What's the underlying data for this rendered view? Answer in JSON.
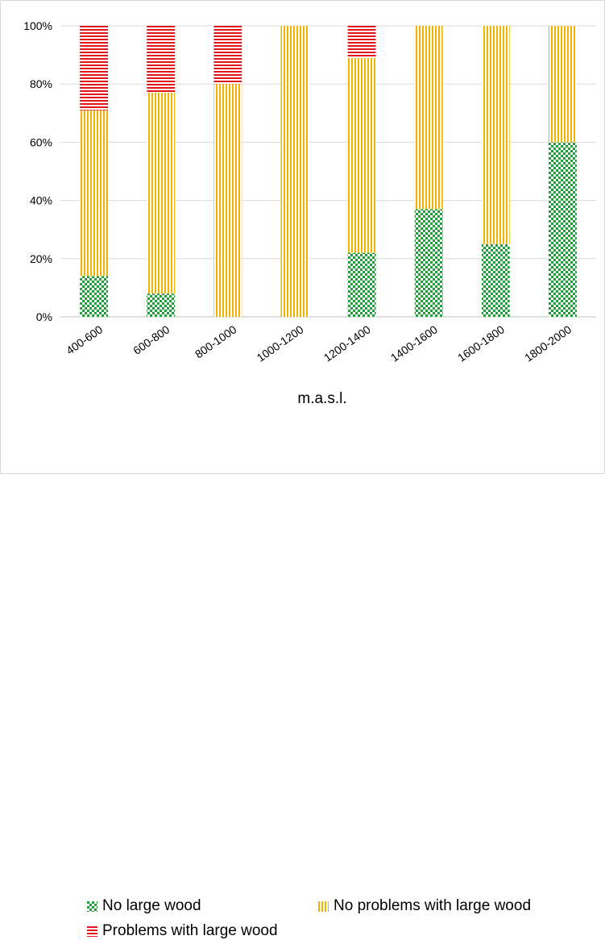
{
  "chart_data": {
    "type": "bar",
    "stacked": true,
    "normalized": true,
    "categories": [
      "400-600",
      "600-800",
      "800-1000",
      "1000-1200",
      "1200-1400",
      "1400-1600",
      "1600-1800",
      "1800-2000"
    ],
    "series": [
      {
        "name": "No large wood",
        "values": [
          14,
          8,
          0,
          0,
          22,
          37,
          25,
          60
        ],
        "color": "#1f9e3a",
        "pattern": "checker"
      },
      {
        "name": "No problems with large wood",
        "values": [
          57,
          69,
          80,
          100,
          67,
          63,
          75,
          40
        ],
        "color": "#f0b400",
        "pattern": "vertical-stripes"
      },
      {
        "name": "Problems with large wood",
        "values": [
          29,
          23,
          20,
          0,
          11,
          0,
          0,
          0
        ],
        "color": "#e0161c",
        "pattern": "horizontal-stripes"
      }
    ],
    "title": "",
    "xlabel": "m.a.s.l.",
    "ylabel": "",
    "ylim": [
      0,
      100
    ],
    "yticks": [
      "0%",
      "20%",
      "40%",
      "60%",
      "80%",
      "100%"
    ],
    "grid": true,
    "legend_position": "bottom"
  }
}
